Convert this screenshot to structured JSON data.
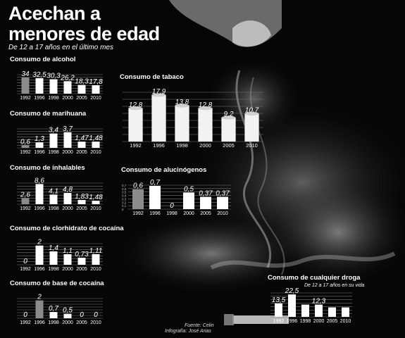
{
  "header": {
    "title_line1": "Acechan a",
    "title_line2": "menores de edad",
    "subtitle": "De 12 a 17 años en el último mes"
  },
  "credits": {
    "source": "Fuente: Celin",
    "infographic": "Infografía: José Arias"
  },
  "colors": {
    "highlight_bar": "#8c8c8c",
    "bar": "#ffffff",
    "text": "#ffffff"
  },
  "chart_data": [
    {
      "id": "alcohol",
      "type": "bar",
      "title": "Consumo de alcohol",
      "categories": [
        "1992",
        "1996",
        "1998",
        "2000",
        "2005",
        "2010"
      ],
      "values": [
        34,
        32.5,
        30.3,
        26.2,
        18.3,
        17.8
      ],
      "value_labels": [
        "34",
        "32,5",
        "30,3",
        "26,2",
        "18,3",
        "17,8"
      ],
      "ylim": [
        0,
        40
      ],
      "highlight_index": 0,
      "grid": true
    },
    {
      "id": "marihuana",
      "type": "bar",
      "title": "Consumo de marihuana",
      "categories": [
        "1992",
        "1996",
        "1998",
        "2000",
        "2005",
        "2010"
      ],
      "values": [
        0.6,
        1.3,
        3.4,
        3.7,
        1.47,
        1.48
      ],
      "value_labels": [
        "0,6",
        "1,3",
        "3,4",
        "3,7",
        "1,47",
        "1,48"
      ],
      "ylim": [
        0,
        4.5
      ],
      "highlight_index": 0,
      "grid": true
    },
    {
      "id": "inhalables",
      "type": "bar",
      "title": "Consumo de inhalables",
      "categories": [
        "1992",
        "1996",
        "1998",
        "2000",
        "2005",
        "2010"
      ],
      "values": [
        2.6,
        8.6,
        4.1,
        4.8,
        1.83,
        1.48
      ],
      "value_labels": [
        "2,6",
        "8,6",
        "4,1",
        "4,8",
        "1,83",
        "1,48"
      ],
      "ylim": [
        0,
        9
      ],
      "highlight_index": 0,
      "grid": true
    },
    {
      "id": "clorhidrato",
      "type": "bar",
      "title": "Consumo de clorhidrato de cocaína",
      "categories": [
        "1992",
        "1996",
        "1998",
        "2000",
        "2005",
        "2010"
      ],
      "values": [
        0,
        2,
        1.4,
        1.1,
        0.73,
        1.11
      ],
      "value_labels": [
        "0",
        "2",
        "1,4",
        "1,1",
        "0,73",
        "1,11"
      ],
      "ylim": [
        0,
        2.2
      ],
      "highlight_index": 0,
      "grid": true
    },
    {
      "id": "base",
      "type": "bar",
      "title": "Consumo de base de cocaína",
      "categories": [
        "1992",
        "1996",
        "1998",
        "2000",
        "2005",
        "2010"
      ],
      "values": [
        0,
        2,
        0.7,
        0.5,
        0,
        0
      ],
      "value_labels": [
        "0",
        "2",
        "0,7",
        "0,5",
        "0",
        "0"
      ],
      "ylim": [
        0,
        2.2
      ],
      "highlight_index": 1,
      "grid": true
    },
    {
      "id": "tabaco",
      "type": "bar",
      "title": "Consumo de tabaco",
      "categories": [
        "1992",
        "1996",
        "1998",
        "2000",
        "2005",
        "2010"
      ],
      "values": [
        12.8,
        17.9,
        13.8,
        12.8,
        9.2,
        10.7
      ],
      "value_labels": [
        "12,8",
        "17,9",
        "13,8",
        "12,8",
        "9,2",
        "10,7"
      ],
      "ylim": [
        0,
        19
      ],
      "highlight_index": -1,
      "style": "cylinder",
      "grid": true
    },
    {
      "id": "alucinogenos",
      "type": "bar",
      "title": "Consumo de alucinógenos",
      "categories": [
        "1992",
        "1996",
        "1998",
        "2000",
        "2005",
        "2010"
      ],
      "values": [
        0.6,
        0.7,
        0,
        0.5,
        0.37,
        0.37
      ],
      "value_labels": [
        "0,6",
        "0,7",
        "0",
        "0,5",
        "0,37",
        "0,37"
      ],
      "ylim": [
        0,
        0.72
      ],
      "yticks": [
        "0,7",
        "0,6",
        "0,5",
        "0,4",
        "0,3",
        "0,2",
        "0,1",
        "0"
      ],
      "highlight_index": 0,
      "grid": true
    },
    {
      "id": "cualquier",
      "type": "bar",
      "title": "Consumo de cualquier droga",
      "subtitle": "De 12 a 17 años en su vida",
      "categories": [
        "1992",
        "1996",
        "1998",
        "2000",
        "2005",
        "2010"
      ],
      "values": [
        13.5,
        22.5,
        12.3,
        12.3,
        9.5,
        9.5
      ],
      "value_labels": [
        "13,5",
        "22,5",
        "",
        "12,3",
        "",
        ""
      ],
      "ylim": [
        0,
        24
      ],
      "highlight_index": -1,
      "grid": true
    }
  ]
}
